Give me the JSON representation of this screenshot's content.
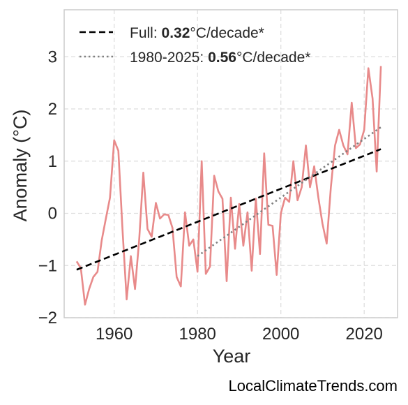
{
  "chart_data": {
    "type": "line",
    "xlabel": "Year",
    "ylabel": "Anomaly (°C)",
    "xlim": [
      1948,
      2028
    ],
    "ylim": [
      -2,
      3.9
    ],
    "x_ticks": [
      1960,
      1980,
      2000,
      2020
    ],
    "y_ticks": [
      -2,
      -1,
      0,
      1,
      2,
      3
    ],
    "y_tick_labels": [
      "−2",
      "−1",
      "0",
      "1",
      "2",
      "3"
    ],
    "grid": true,
    "legend_position": "top-left",
    "series": [
      {
        "color": "#e88a8a",
        "x": [
          1951,
          1952,
          1953,
          1954,
          1955,
          1956,
          1957,
          1958,
          1959,
          1960,
          1961,
          1962,
          1963,
          1964,
          1965,
          1966,
          1967,
          1968,
          1969,
          1970,
          1971,
          1972,
          1973,
          1974,
          1975,
          1976,
          1977,
          1978,
          1979,
          1980,
          1981,
          1982,
          1983,
          1984,
          1985,
          1986,
          1987,
          1988,
          1989,
          1990,
          1991,
          1992,
          1993,
          1994,
          1995,
          1996,
          1997,
          1998,
          1999,
          2000,
          2001,
          2002,
          2003,
          2004,
          2005,
          2006,
          2007,
          2008,
          2009,
          2010,
          2011,
          2012,
          2013,
          2014,
          2015,
          2016,
          2017,
          2018,
          2019,
          2020,
          2021,
          2022,
          2023,
          2024
        ],
        "y": [
          -0.92,
          -1.05,
          -1.75,
          -1.45,
          -1.22,
          -1.12,
          -0.52,
          -0.1,
          0.3,
          1.4,
          1.2,
          -0.3,
          -1.65,
          -0.82,
          -1.45,
          -0.5,
          0.78,
          -0.3,
          -0.45,
          0.2,
          -0.1,
          -0.02,
          -0.03,
          -0.28,
          -1.22,
          -1.4,
          0.02,
          -0.62,
          -0.5,
          -1.12,
          1.0,
          -1.16,
          -1.02,
          0.72,
          0.42,
          0.28,
          -1.3,
          0.3,
          -0.68,
          0.18,
          -0.62,
          0.02,
          -1.1,
          0.28,
          -0.78,
          1.15,
          -0.22,
          -0.24,
          -1.18,
          0.0,
          0.3,
          0.22,
          1.0,
          0.25,
          0.5,
          1.3,
          0.5,
          0.9,
          0.3,
          -0.2,
          -0.58,
          0.5,
          1.3,
          1.6,
          1.3,
          1.13,
          2.12,
          1.25,
          1.32,
          1.6,
          2.78,
          2.2,
          0.8,
          2.82
        ]
      }
    ],
    "trendlines": [
      {
        "label": "Full",
        "value": "0.32",
        "unit": "°C/decade*",
        "style": "dashed",
        "color": "#000000",
        "x": [
          1951,
          2024
        ],
        "y": [
          -1.08,
          1.23
        ]
      },
      {
        "label": "1980-2025",
        "value": "0.56",
        "unit": "°C/decade*",
        "style": "dotted",
        "color": "#808080",
        "x": [
          1980,
          2024
        ],
        "y": [
          -0.82,
          1.65
        ]
      }
    ]
  },
  "legend": {
    "full_prefix": "Full: ",
    "full_value": "0.32",
    "full_unit": "°C/decade*",
    "recent_prefix": "1980-2025: ",
    "recent_value": "0.56",
    "recent_unit": "°C/decade*"
  },
  "watermark": "LocalClimateTrends.com"
}
